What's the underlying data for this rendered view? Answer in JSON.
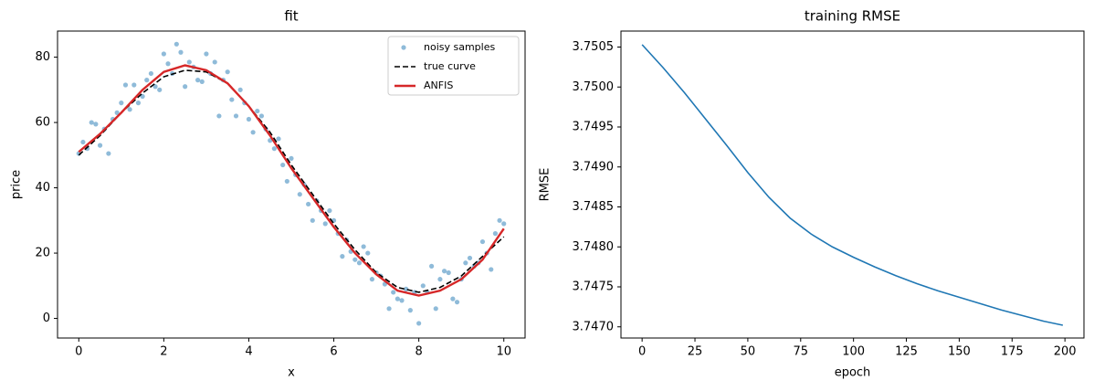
{
  "chart_data": [
    {
      "type": "scatter",
      "title": "fit",
      "xlabel": "x",
      "ylabel": "price",
      "xlim": [
        -0.5,
        10.5
      ],
      "xticks": [
        0,
        2,
        4,
        6,
        8,
        10
      ],
      "ylim": [
        -6,
        88
      ],
      "yticks": [
        0,
        20,
        40,
        60,
        80
      ],
      "legend": "upper right",
      "series": [
        {
          "name": "noisy samples",
          "type": "scatter",
          "color": "#1f77b4",
          "x": [
            0.0,
            0.1,
            0.2,
            0.3,
            0.4,
            0.5,
            0.6,
            0.7,
            0.8,
            0.9,
            1.0,
            1.1,
            1.2,
            1.3,
            1.4,
            1.5,
            1.6,
            1.7,
            1.8,
            1.9,
            2.0,
            2.1,
            2.2,
            2.3,
            2.4,
            2.5,
            2.6,
            2.7,
            2.8,
            2.9,
            3.0,
            3.1,
            3.2,
            3.3,
            3.4,
            3.5,
            3.6,
            3.7,
            3.8,
            3.9,
            4.0,
            4.1,
            4.2,
            4.3,
            4.4,
            4.5,
            4.6,
            4.7,
            4.8,
            4.9,
            5.0,
            5.1,
            5.2,
            5.3,
            5.4,
            5.5,
            5.6,
            5.7,
            5.8,
            5.9,
            6.0,
            6.1,
            6.2,
            6.3,
            6.4,
            6.5,
            6.6,
            6.7,
            6.8,
            6.9,
            7.0,
            7.1,
            7.2,
            7.3,
            7.4,
            7.5,
            7.6,
            7.7,
            7.8,
            7.9,
            8.0,
            8.1,
            8.2,
            8.3,
            8.4,
            8.5,
            8.6,
            8.7,
            8.8,
            8.9,
            9.0,
            9.1,
            9.2,
            9.3,
            9.4,
            9.5,
            9.6,
            9.7,
            9.8,
            9.9,
            10.0
          ],
          "values": [
            50.5,
            54,
            52,
            60,
            59.5,
            53,
            58,
            50.5,
            61,
            63,
            66,
            71.5,
            64,
            71.5,
            66,
            68,
            73,
            75,
            71,
            70,
            81,
            78,
            75,
            84,
            81.5,
            71,
            78.5,
            77,
            73,
            72.5,
            81,
            75,
            78.5,
            62,
            73,
            75.5,
            67,
            62,
            70,
            66,
            61,
            57,
            63.5,
            62,
            58,
            54.5,
            52,
            55,
            47,
            42,
            49,
            44,
            38,
            41,
            35,
            30,
            36,
            33,
            29,
            33,
            30,
            26,
            19,
            24,
            20.5,
            18,
            17,
            22,
            20,
            12,
            14,
            13,
            10.5,
            3,
            8,
            6,
            5.5,
            9,
            2.5,
            8,
            -1.5,
            10,
            8,
            16,
            3,
            12,
            14.5,
            14,
            6,
            5,
            12,
            17,
            18.5,
            16,
            17,
            23.5,
            20,
            15,
            26,
            30,
            29
          ]
        },
        {
          "name": "true curve",
          "type": "line",
          "dash": true,
          "color": "#000000",
          "x": [
            0,
            0.5,
            1,
            1.5,
            2,
            2.5,
            3,
            3.5,
            4,
            4.5,
            5,
            5.5,
            6,
            6.5,
            7,
            7.5,
            8,
            8.5,
            9,
            9.5,
            10
          ],
          "values": [
            50,
            56,
            63,
            69,
            74,
            76,
            75.5,
            72,
            65,
            57,
            47,
            38,
            29,
            21,
            14,
            9.5,
            8,
            9.5,
            13,
            19,
            25
          ]
        },
        {
          "name": "ANFIS",
          "type": "line",
          "color": "#d62728",
          "x": [
            0,
            0.5,
            1,
            1.5,
            2,
            2.5,
            3,
            3.5,
            4,
            4.5,
            5,
            5.5,
            6,
            6.5,
            7,
            7.5,
            8,
            8.5,
            9,
            9.5,
            10
          ],
          "values": [
            51,
            56.5,
            63,
            70,
            75.5,
            77.5,
            76,
            72,
            65,
            56,
            46,
            37,
            28,
            20,
            13.5,
            8.5,
            7,
            8.5,
            12,
            18,
            27.5
          ]
        }
      ]
    },
    {
      "type": "line",
      "title": "training RMSE",
      "xlabel": "epoch",
      "ylabel": "RMSE",
      "xlim": [
        -10,
        209
      ],
      "xticks": [
        0,
        25,
        50,
        75,
        100,
        125,
        150,
        175,
        200
      ],
      "ylim": [
        3.74686,
        3.7507
      ],
      "yticks": [
        {
          "value": 3.747,
          "label": "3.7470"
        },
        {
          "value": 3.7475,
          "label": "3.7475"
        },
        {
          "value": 3.748,
          "label": "3.7480"
        },
        {
          "value": 3.7485,
          "label": "3.7485"
        },
        {
          "value": 3.749,
          "label": "3.7490"
        },
        {
          "value": 3.7495,
          "label": "3.7495"
        },
        {
          "value": 3.75,
          "label": "3.7500"
        },
        {
          "value": 3.7505,
          "label": "3.7505"
        }
      ],
      "series": [
        {
          "type": "line",
          "color": "#1f77b4",
          "x": [
            0,
            10,
            20,
            30,
            40,
            50,
            60,
            70,
            80,
            90,
            100,
            110,
            120,
            130,
            140,
            150,
            160,
            170,
            180,
            190,
            199
          ],
          "values": [
            3.75053,
            3.75024,
            3.74993,
            3.7496,
            3.74927,
            3.74893,
            3.74862,
            3.74836,
            3.74816,
            3.748,
            3.74787,
            3.74775,
            3.74764,
            3.74754,
            3.74745,
            3.74737,
            3.74729,
            3.74721,
            3.74714,
            3.74707,
            3.74702
          ]
        }
      ]
    }
  ]
}
